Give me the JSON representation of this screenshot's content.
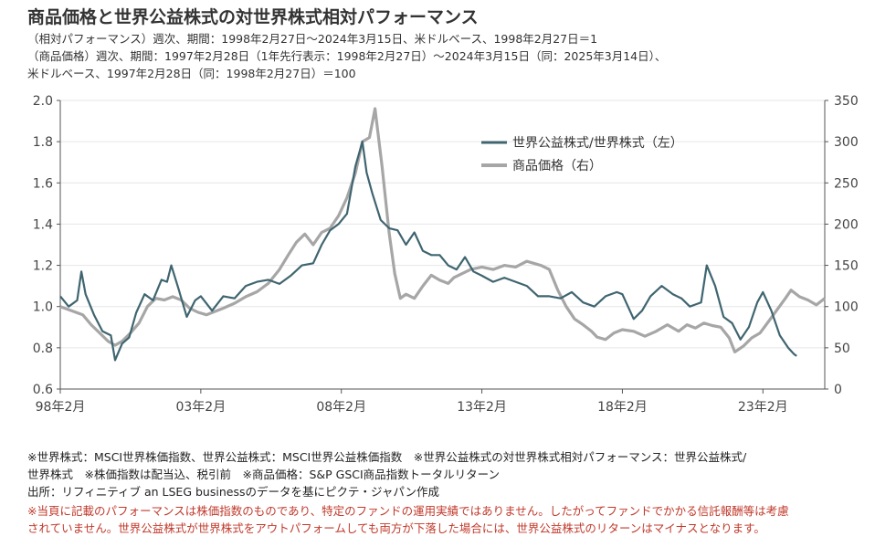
{
  "header": {
    "title": "商品価格と世界公益株式の対世界株式相対パフォーマンス",
    "subtitle_lines": [
      "（相対パフォーマンス）週次、期間：1998年2月27日～2024年3月15日、米ドルベース、1998年2月27日＝1",
      "（商品価格）週次、期間：1997年2月28日（1年先行表示：1998年2月27日）～2024年3月15日（同：2025年3月14日）、",
      "米ドルベース、1997年2月28日（同：1998年2月27日）＝100"
    ]
  },
  "footer": {
    "notes": [
      "※世界株式：MSCI世界株価指数、世界公益株式：MSCI世界公益株価指数　※世界公益株式の対世界株式相対パフォーマンス：世界公益株式/",
      "世界株式　※株価指数は配当込、税引前　※商品価格：S&P GSCI商品指数トータルリターン",
      "出所：リフィニティブ an LSEG businessのデータを基にピクテ・ジャパン作成"
    ],
    "warnings": [
      "※当頁に記載のパフォーマンスは株価指数のものであり、特定のファンドの運用実績ではありません。したがってファンドでかかる信託報酬等は考慮",
      "されていません。世界公益株式が世界株式をアウトパフォームしても両方が下落した場合には、世界公益株式のリターンはマイナスとなります。"
    ]
  },
  "colors": {
    "utilities": "#3f6570",
    "commodity": "#a6a6a6",
    "axis": "#555555",
    "grid": "#e6e6e6"
  },
  "chart_data": {
    "type": "line",
    "x_ticks": [
      1998,
      2003,
      2008,
      2013,
      2018,
      2023
    ],
    "x_tick_labels": [
      "98年2月",
      "03年2月",
      "08年2月",
      "13年2月",
      "18年2月",
      "23年2月"
    ],
    "xlim": [
      1998.0,
      2025.2
    ],
    "y_left": {
      "lim": [
        0.6,
        2.0
      ],
      "ticks": [
        0.6,
        0.8,
        1.0,
        1.2,
        1.4,
        1.6,
        1.8,
        2.0
      ],
      "tick_labels": [
        "0.6",
        "0.8",
        "1.0",
        "1.2",
        "1.4",
        "1.6",
        "1.8",
        "2.0"
      ]
    },
    "y_right": {
      "lim": [
        0,
        350
      ],
      "ticks": [
        0,
        50,
        100,
        150,
        200,
        250,
        300,
        350
      ],
      "tick_labels": [
        "0",
        "50",
        "100",
        "150",
        "200",
        "250",
        "300",
        "350"
      ]
    },
    "legend_position": "top-right",
    "series": [
      {
        "name": "世界公益株式/世界株式（左）",
        "axis": "left",
        "color": "#3f6570",
        "points": [
          [
            1998.0,
            1.05
          ],
          [
            1998.3,
            1.0
          ],
          [
            1998.6,
            1.03
          ],
          [
            1998.75,
            1.17
          ],
          [
            1998.9,
            1.06
          ],
          [
            1999.2,
            0.96
          ],
          [
            1999.5,
            0.88
          ],
          [
            1999.8,
            0.86
          ],
          [
            1999.95,
            0.74
          ],
          [
            2000.2,
            0.82
          ],
          [
            2000.45,
            0.85
          ],
          [
            2000.7,
            0.97
          ],
          [
            2001.0,
            1.06
          ],
          [
            2001.3,
            1.03
          ],
          [
            2001.6,
            1.13
          ],
          [
            2001.8,
            1.12
          ],
          [
            2001.95,
            1.2
          ],
          [
            2002.2,
            1.09
          ],
          [
            2002.5,
            0.95
          ],
          [
            2002.8,
            1.03
          ],
          [
            2003.0,
            1.05
          ],
          [
            2003.4,
            0.98
          ],
          [
            2003.8,
            1.05
          ],
          [
            2004.2,
            1.04
          ],
          [
            2004.6,
            1.1
          ],
          [
            2005.0,
            1.12
          ],
          [
            2005.4,
            1.13
          ],
          [
            2005.8,
            1.11
          ],
          [
            2006.2,
            1.15
          ],
          [
            2006.6,
            1.2
          ],
          [
            2007.0,
            1.21
          ],
          [
            2007.3,
            1.3
          ],
          [
            2007.6,
            1.37
          ],
          [
            2007.9,
            1.4
          ],
          [
            2008.2,
            1.45
          ],
          [
            2008.5,
            1.68
          ],
          [
            2008.75,
            1.8
          ],
          [
            2008.9,
            1.65
          ],
          [
            2009.1,
            1.55
          ],
          [
            2009.4,
            1.42
          ],
          [
            2009.7,
            1.38
          ],
          [
            2010.0,
            1.37
          ],
          [
            2010.3,
            1.3
          ],
          [
            2010.6,
            1.36
          ],
          [
            2010.9,
            1.27
          ],
          [
            2011.2,
            1.25
          ],
          [
            2011.5,
            1.25
          ],
          [
            2011.8,
            1.2
          ],
          [
            2012.1,
            1.18
          ],
          [
            2012.4,
            1.24
          ],
          [
            2012.7,
            1.17
          ],
          [
            2013.0,
            1.15
          ],
          [
            2013.4,
            1.12
          ],
          [
            2013.8,
            1.14
          ],
          [
            2014.2,
            1.12
          ],
          [
            2014.6,
            1.1
          ],
          [
            2015.0,
            1.05
          ],
          [
            2015.4,
            1.05
          ],
          [
            2015.8,
            1.04
          ],
          [
            2016.2,
            1.07
          ],
          [
            2016.6,
            1.02
          ],
          [
            2017.0,
            1.0
          ],
          [
            2017.4,
            1.05
          ],
          [
            2017.8,
            1.07
          ],
          [
            2018.0,
            1.06
          ],
          [
            2018.4,
            0.94
          ],
          [
            2018.7,
            0.98
          ],
          [
            2019.0,
            1.05
          ],
          [
            2019.4,
            1.1
          ],
          [
            2019.8,
            1.06
          ],
          [
            2020.1,
            1.04
          ],
          [
            2020.4,
            1.0
          ],
          [
            2020.8,
            1.02
          ],
          [
            2021.0,
            1.2
          ],
          [
            2021.3,
            1.1
          ],
          [
            2021.6,
            0.95
          ],
          [
            2021.9,
            0.92
          ],
          [
            2022.2,
            0.84
          ],
          [
            2022.5,
            0.9
          ],
          [
            2022.8,
            1.02
          ],
          [
            2023.0,
            1.07
          ],
          [
            2023.3,
            0.98
          ],
          [
            2023.6,
            0.86
          ],
          [
            2023.9,
            0.8
          ],
          [
            2024.1,
            0.77
          ],
          [
            2024.2,
            0.76
          ]
        ]
      },
      {
        "name": "商品価格（右）",
        "axis": "right",
        "color": "#a6a6a6",
        "points": [
          [
            1998.0,
            100
          ],
          [
            1998.4,
            95
          ],
          [
            1998.8,
            90
          ],
          [
            1999.1,
            78
          ],
          [
            1999.4,
            68
          ],
          [
            1999.7,
            58
          ],
          [
            1999.95,
            53
          ],
          [
            2000.2,
            58
          ],
          [
            2000.5,
            68
          ],
          [
            2000.8,
            80
          ],
          [
            2001.1,
            100
          ],
          [
            2001.4,
            110
          ],
          [
            2001.7,
            108
          ],
          [
            2002.0,
            112
          ],
          [
            2002.3,
            108
          ],
          [
            2002.6,
            98
          ],
          [
            2002.9,
            93
          ],
          [
            2003.2,
            90
          ],
          [
            2003.5,
            94
          ],
          [
            2003.8,
            98
          ],
          [
            2004.2,
            104
          ],
          [
            2004.6,
            112
          ],
          [
            2005.0,
            118
          ],
          [
            2005.4,
            128
          ],
          [
            2005.8,
            145
          ],
          [
            2006.1,
            162
          ],
          [
            2006.4,
            178
          ],
          [
            2006.7,
            188
          ],
          [
            2007.0,
            175
          ],
          [
            2007.3,
            190
          ],
          [
            2007.6,
            195
          ],
          [
            2007.9,
            210
          ],
          [
            2008.2,
            232
          ],
          [
            2008.5,
            262
          ],
          [
            2008.75,
            300
          ],
          [
            2009.0,
            305
          ],
          [
            2009.2,
            340
          ],
          [
            2009.45,
            270
          ],
          [
            2009.7,
            190
          ],
          [
            2009.9,
            140
          ],
          [
            2010.1,
            110
          ],
          [
            2010.3,
            115
          ],
          [
            2010.6,
            110
          ],
          [
            2010.9,
            125
          ],
          [
            2011.2,
            138
          ],
          [
            2011.5,
            132
          ],
          [
            2011.8,
            128
          ],
          [
            2012.0,
            135
          ],
          [
            2012.3,
            140
          ],
          [
            2012.6,
            145
          ],
          [
            2013.0,
            148
          ],
          [
            2013.4,
            145
          ],
          [
            2013.8,
            150
          ],
          [
            2014.2,
            148
          ],
          [
            2014.6,
            155
          ],
          [
            2014.9,
            152
          ],
          [
            2015.1,
            150
          ],
          [
            2015.4,
            145
          ],
          [
            2015.7,
            120
          ],
          [
            2016.0,
            100
          ],
          [
            2016.3,
            85
          ],
          [
            2016.6,
            78
          ],
          [
            2016.9,
            70
          ],
          [
            2017.1,
            63
          ],
          [
            2017.4,
            60
          ],
          [
            2017.7,
            68
          ],
          [
            2018.0,
            72
          ],
          [
            2018.4,
            70
          ],
          [
            2018.8,
            64
          ],
          [
            2019.2,
            70
          ],
          [
            2019.6,
            78
          ],
          [
            2020.0,
            70
          ],
          [
            2020.3,
            78
          ],
          [
            2020.6,
            74
          ],
          [
            2020.9,
            80
          ],
          [
            2021.2,
            77
          ],
          [
            2021.5,
            75
          ],
          [
            2021.8,
            62
          ],
          [
            2022.0,
            45
          ],
          [
            2022.3,
            52
          ],
          [
            2022.6,
            62
          ],
          [
            2022.9,
            68
          ],
          [
            2023.2,
            82
          ],
          [
            2023.5,
            96
          ],
          [
            2023.8,
            110
          ],
          [
            2024.0,
            120
          ],
          [
            2024.3,
            112
          ],
          [
            2024.6,
            108
          ],
          [
            2024.9,
            102
          ],
          [
            2025.2,
            110
          ]
        ]
      }
    ]
  }
}
